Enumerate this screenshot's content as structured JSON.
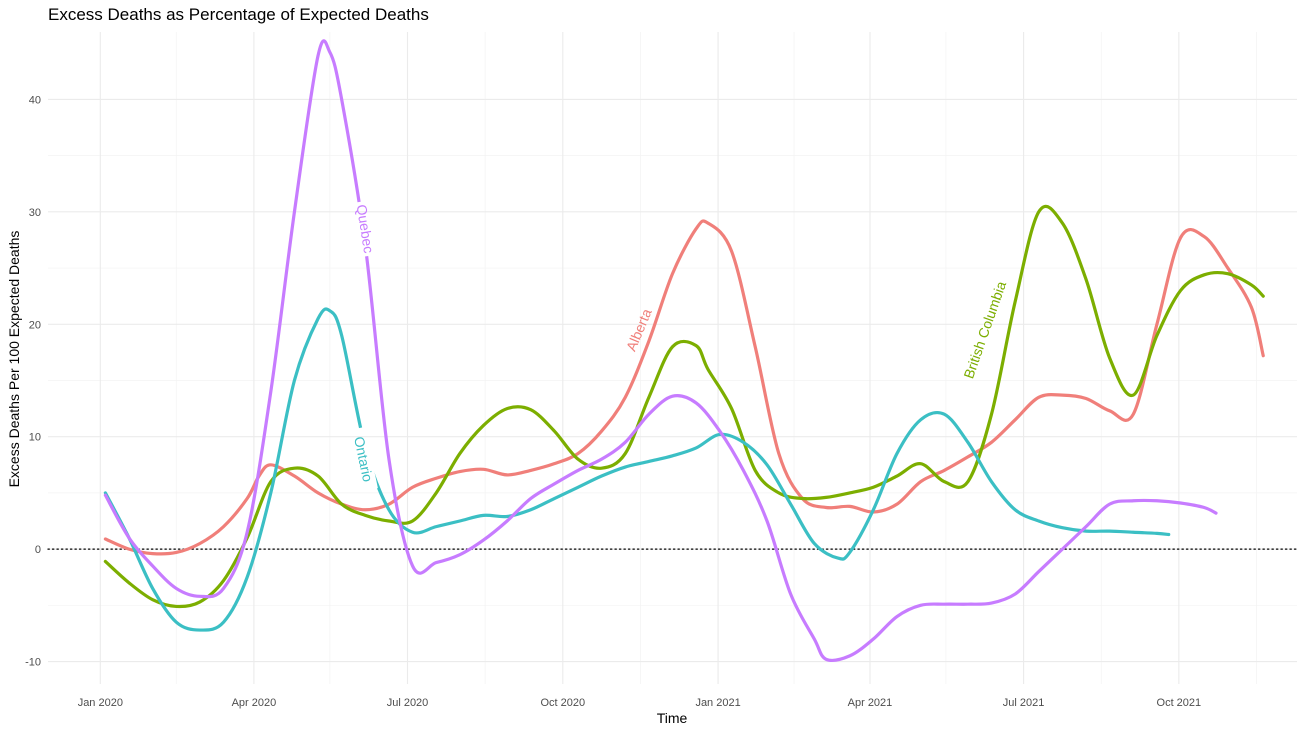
{
  "chart_data": {
    "type": "line",
    "title": "Excess Deaths as Percentage of Expected Deaths",
    "xlabel": "Time",
    "ylabel": "Excess Deaths Per 100 Expected Deaths",
    "xlim": [
      "2019-12-01",
      "2021-12-10"
    ],
    "ylim": [
      -12,
      46
    ],
    "x_ticks": [
      {
        "date": "2020-01-01",
        "label": "Jan 2020"
      },
      {
        "date": "2020-04-01",
        "label": "Apr 2020"
      },
      {
        "date": "2020-07-01",
        "label": "Jul 2020"
      },
      {
        "date": "2020-10-01",
        "label": "Oct 2020"
      },
      {
        "date": "2021-01-01",
        "label": "Jan 2021"
      },
      {
        "date": "2021-04-01",
        "label": "Apr 2021"
      },
      {
        "date": "2021-07-01",
        "label": "Jul 2021"
      },
      {
        "date": "2021-10-01",
        "label": "Oct 2021"
      }
    ],
    "x_minor_ticks": [
      "2020-02-15",
      "2020-05-16",
      "2020-08-16",
      "2020-11-16",
      "2021-02-15",
      "2021-05-16",
      "2021-08-16",
      "2021-11-16"
    ],
    "y_ticks": [
      -10,
      0,
      10,
      20,
      30,
      40
    ],
    "y_minor_ticks": [
      -5,
      5,
      15,
      25,
      35
    ],
    "reference_line": {
      "y": 0,
      "style": "dotted"
    },
    "grid": true,
    "legend": "none (direct labels on lines)",
    "series": [
      {
        "name": "Alberta",
        "color": "#F07F7A",
        "label_at": {
          "date": "2020-11-15",
          "value": 19.5
        },
        "points": [
          [
            "2020-01-04",
            0.9
          ],
          [
            "2020-01-18",
            0.0
          ],
          [
            "2020-02-01",
            -0.4
          ],
          [
            "2020-02-15",
            -0.3
          ],
          [
            "2020-02-29",
            0.5
          ],
          [
            "2020-03-14",
            2.0
          ],
          [
            "2020-03-28",
            4.5
          ],
          [
            "2020-04-04",
            6.5
          ],
          [
            "2020-04-11",
            7.5
          ],
          [
            "2020-04-25",
            6.5
          ],
          [
            "2020-05-09",
            5.0
          ],
          [
            "2020-05-23",
            4.0
          ],
          [
            "2020-06-06",
            3.5
          ],
          [
            "2020-06-20",
            4.0
          ],
          [
            "2020-07-04",
            5.5
          ],
          [
            "2020-07-18",
            6.3
          ],
          [
            "2020-08-01",
            6.9
          ],
          [
            "2020-08-15",
            7.1
          ],
          [
            "2020-08-29",
            6.6
          ],
          [
            "2020-09-12",
            7.0
          ],
          [
            "2020-09-26",
            7.6
          ],
          [
            "2020-10-10",
            8.5
          ],
          [
            "2020-10-24",
            10.5
          ],
          [
            "2020-11-07",
            13.5
          ],
          [
            "2020-11-21",
            18.5
          ],
          [
            "2020-12-05",
            24.5
          ],
          [
            "2020-12-19",
            28.5
          ],
          [
            "2020-12-26",
            29.0
          ],
          [
            "2021-01-09",
            26.5
          ],
          [
            "2021-01-23",
            18.0
          ],
          [
            "2021-02-06",
            8.5
          ],
          [
            "2021-02-20",
            4.5
          ],
          [
            "2021-03-06",
            3.7
          ],
          [
            "2021-03-20",
            3.8
          ],
          [
            "2021-04-03",
            3.3
          ],
          [
            "2021-04-17",
            4.0
          ],
          [
            "2021-05-01",
            6.0
          ],
          [
            "2021-05-15",
            7.0
          ],
          [
            "2021-05-29",
            8.2
          ],
          [
            "2021-06-12",
            9.5
          ],
          [
            "2021-06-26",
            11.5
          ],
          [
            "2021-07-10",
            13.5
          ],
          [
            "2021-07-24",
            13.7
          ],
          [
            "2021-08-07",
            13.4
          ],
          [
            "2021-08-21",
            12.3
          ],
          [
            "2021-09-04",
            12.0
          ],
          [
            "2021-09-18",
            20.0
          ],
          [
            "2021-10-02",
            27.7
          ],
          [
            "2021-10-16",
            27.8
          ],
          [
            "2021-10-30",
            25.0
          ],
          [
            "2021-11-13",
            21.5
          ],
          [
            "2021-11-20",
            17.2
          ]
        ]
      },
      {
        "name": "British Columbia",
        "color": "#7CAE00",
        "label_at": {
          "date": "2021-06-08",
          "value": 19.5
        },
        "points": [
          [
            "2020-01-04",
            -1.1
          ],
          [
            "2020-01-18",
            -3.0
          ],
          [
            "2020-02-01",
            -4.5
          ],
          [
            "2020-02-15",
            -5.1
          ],
          [
            "2020-02-29",
            -4.7
          ],
          [
            "2020-03-14",
            -2.8
          ],
          [
            "2020-03-28",
            1.0
          ],
          [
            "2020-04-11",
            6.0
          ],
          [
            "2020-04-25",
            7.2
          ],
          [
            "2020-05-09",
            6.5
          ],
          [
            "2020-05-23",
            4.0
          ],
          [
            "2020-06-06",
            3.0
          ],
          [
            "2020-06-20",
            2.5
          ],
          [
            "2020-07-04",
            2.5
          ],
          [
            "2020-07-18",
            5.0
          ],
          [
            "2020-08-01",
            8.5
          ],
          [
            "2020-08-15",
            11.0
          ],
          [
            "2020-08-29",
            12.5
          ],
          [
            "2020-09-12",
            12.4
          ],
          [
            "2020-09-26",
            10.5
          ],
          [
            "2020-10-10",
            8.0
          ],
          [
            "2020-10-24",
            7.2
          ],
          [
            "2020-11-07",
            8.5
          ],
          [
            "2020-11-21",
            13.5
          ],
          [
            "2020-12-05",
            18.0
          ],
          [
            "2020-12-19",
            18.1
          ],
          [
            "2020-12-26",
            16.0
          ],
          [
            "2021-01-09",
            12.5
          ],
          [
            "2021-01-23",
            7.0
          ],
          [
            "2021-02-06",
            5.0
          ],
          [
            "2021-02-20",
            4.5
          ],
          [
            "2021-03-06",
            4.6
          ],
          [
            "2021-03-20",
            5.0
          ],
          [
            "2021-04-03",
            5.5
          ],
          [
            "2021-04-17",
            6.5
          ],
          [
            "2021-05-01",
            7.6
          ],
          [
            "2021-05-15",
            6.0
          ],
          [
            "2021-05-29",
            6.0
          ],
          [
            "2021-06-12",
            12.0
          ],
          [
            "2021-06-26",
            22.0
          ],
          [
            "2021-07-10",
            30.0
          ],
          [
            "2021-07-24",
            29.0
          ],
          [
            "2021-08-07",
            24.0
          ],
          [
            "2021-08-21",
            17.0
          ],
          [
            "2021-09-04",
            13.7
          ],
          [
            "2021-09-18",
            19.0
          ],
          [
            "2021-10-02",
            23.0
          ],
          [
            "2021-10-16",
            24.4
          ],
          [
            "2021-10-30",
            24.5
          ],
          [
            "2021-11-13",
            23.5
          ],
          [
            "2021-11-20",
            22.5
          ]
        ]
      },
      {
        "name": "Ontario",
        "color": "#3BBFC4",
        "label_at": {
          "date": "2020-06-05",
          "value": 8.0
        },
        "points": [
          [
            "2020-01-04",
            5.0
          ],
          [
            "2020-01-18",
            1.0
          ],
          [
            "2020-02-01",
            -3.5
          ],
          [
            "2020-02-15",
            -6.5
          ],
          [
            "2020-02-29",
            -7.2
          ],
          [
            "2020-03-14",
            -6.5
          ],
          [
            "2020-03-28",
            -2.5
          ],
          [
            "2020-04-11",
            5.0
          ],
          [
            "2020-04-25",
            15.0
          ],
          [
            "2020-05-09",
            20.5
          ],
          [
            "2020-05-16",
            21.2
          ],
          [
            "2020-05-23",
            19.0
          ],
          [
            "2020-06-06",
            9.0
          ],
          [
            "2020-06-20",
            3.5
          ],
          [
            "2020-07-04",
            1.5
          ],
          [
            "2020-07-18",
            2.0
          ],
          [
            "2020-08-01",
            2.5
          ],
          [
            "2020-08-15",
            3.0
          ],
          [
            "2020-08-29",
            2.9
          ],
          [
            "2020-09-12",
            3.5
          ],
          [
            "2020-09-26",
            4.5
          ],
          [
            "2020-10-10",
            5.5
          ],
          [
            "2020-10-24",
            6.5
          ],
          [
            "2020-11-07",
            7.3
          ],
          [
            "2020-11-21",
            7.8
          ],
          [
            "2020-12-05",
            8.3
          ],
          [
            "2020-12-19",
            9.0
          ],
          [
            "2021-01-02",
            10.2
          ],
          [
            "2021-01-16",
            9.5
          ],
          [
            "2021-01-30",
            7.5
          ],
          [
            "2021-02-13",
            4.0
          ],
          [
            "2021-02-27",
            0.5
          ],
          [
            "2021-03-13",
            -0.8
          ],
          [
            "2021-03-20",
            -0.3
          ],
          [
            "2021-04-03",
            3.5
          ],
          [
            "2021-04-17",
            8.5
          ],
          [
            "2021-05-01",
            11.5
          ],
          [
            "2021-05-15",
            12.0
          ],
          [
            "2021-05-29",
            9.5
          ],
          [
            "2021-06-12",
            6.0
          ],
          [
            "2021-06-26",
            3.5
          ],
          [
            "2021-07-10",
            2.5
          ],
          [
            "2021-07-24",
            1.9
          ],
          [
            "2021-08-07",
            1.6
          ],
          [
            "2021-08-21",
            1.6
          ],
          [
            "2021-09-04",
            1.5
          ],
          [
            "2021-09-18",
            1.4
          ],
          [
            "2021-09-25",
            1.3
          ]
        ]
      },
      {
        "name": "Quebec",
        "color": "#C77CFF",
        "label_at": {
          "date": "2020-06-06",
          "value": 28.5
        },
        "points": [
          [
            "2020-01-04",
            4.8
          ],
          [
            "2020-01-18",
            1.0
          ],
          [
            "2020-02-01",
            -1.5
          ],
          [
            "2020-02-15",
            -3.5
          ],
          [
            "2020-02-29",
            -4.2
          ],
          [
            "2020-03-14",
            -3.5
          ],
          [
            "2020-03-28",
            1.5
          ],
          [
            "2020-04-11",
            14.0
          ],
          [
            "2020-04-25",
            30.0
          ],
          [
            "2020-05-09",
            43.9
          ],
          [
            "2020-05-16",
            44.2
          ],
          [
            "2020-05-23",
            40.0
          ],
          [
            "2020-06-06",
            27.0
          ],
          [
            "2020-06-20",
            8.0
          ],
          [
            "2020-07-04",
            -1.5
          ],
          [
            "2020-07-18",
            -1.2
          ],
          [
            "2020-08-01",
            -0.5
          ],
          [
            "2020-08-15",
            0.8
          ],
          [
            "2020-08-29",
            2.5
          ],
          [
            "2020-09-12",
            4.5
          ],
          [
            "2020-09-26",
            5.8
          ],
          [
            "2020-10-10",
            7.0
          ],
          [
            "2020-10-24",
            8.0
          ],
          [
            "2020-11-07",
            9.5
          ],
          [
            "2020-11-21",
            12.0
          ],
          [
            "2020-12-05",
            13.6
          ],
          [
            "2020-12-19",
            13.0
          ],
          [
            "2021-01-02",
            10.5
          ],
          [
            "2021-01-16",
            7.0
          ],
          [
            "2021-01-30",
            2.5
          ],
          [
            "2021-02-13",
            -4.0
          ],
          [
            "2021-02-27",
            -8.0
          ],
          [
            "2021-03-06",
            -9.8
          ],
          [
            "2021-03-20",
            -9.5
          ],
          [
            "2021-04-03",
            -8.0
          ],
          [
            "2021-04-17",
            -6.0
          ],
          [
            "2021-05-01",
            -5.0
          ],
          [
            "2021-05-15",
            -4.9
          ],
          [
            "2021-05-29",
            -4.9
          ],
          [
            "2021-06-12",
            -4.8
          ],
          [
            "2021-06-26",
            -4.0
          ],
          [
            "2021-07-10",
            -2.0
          ],
          [
            "2021-07-24",
            0.0
          ],
          [
            "2021-08-07",
            2.0
          ],
          [
            "2021-08-21",
            4.0
          ],
          [
            "2021-09-04",
            4.3
          ],
          [
            "2021-09-18",
            4.3
          ],
          [
            "2021-10-02",
            4.1
          ],
          [
            "2021-10-16",
            3.7
          ],
          [
            "2021-10-23",
            3.2
          ]
        ]
      }
    ]
  }
}
